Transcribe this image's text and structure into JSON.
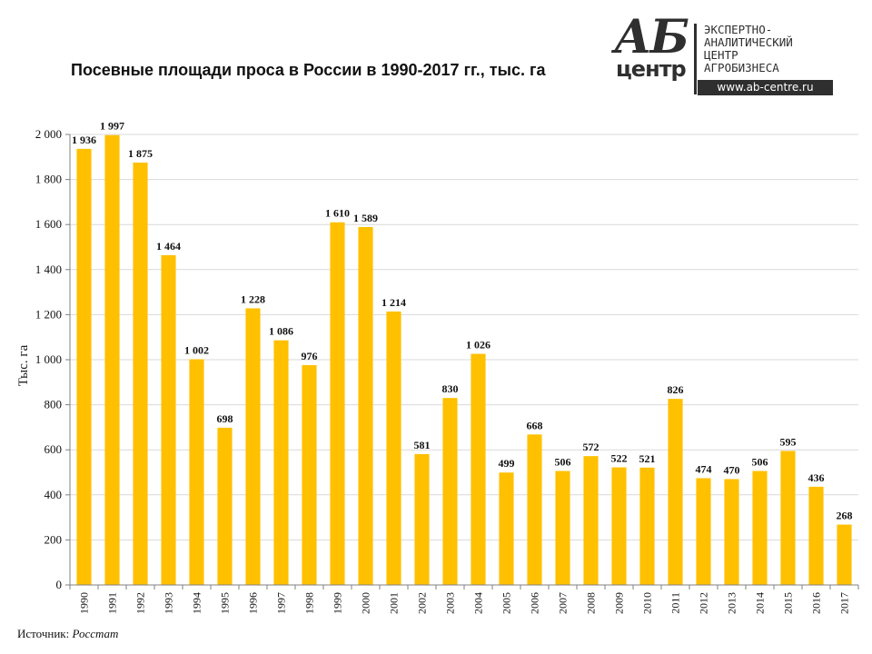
{
  "header": {
    "title": "Посевные площади проса в России в 1990-2017 гг., тыс. га"
  },
  "logo": {
    "ab": "АБ",
    "centr": "центр",
    "line1": "ЭКСПЕРТНО-",
    "line2": "АНАЛИТИЧЕСКИЙ",
    "line3": "ЦЕНТР",
    "line4": "АГРОБИЗНЕСА",
    "url": "www.ab-centre.ru"
  },
  "footer": {
    "source_label": "Источник:",
    "source_value": "Росстат"
  },
  "chart_data": {
    "type": "bar",
    "title": "Посевные площади проса в России в 1990-2017 гг., тыс. га",
    "xlabel": "",
    "ylabel": "Тыс. га",
    "ylim": [
      0,
      2000
    ],
    "yticks": [
      0,
      200,
      400,
      600,
      800,
      1000,
      1200,
      1400,
      1600,
      1800,
      2000
    ],
    "ytick_labels": [
      "0",
      "200",
      "400",
      "600",
      "800",
      "1 000",
      "1 200",
      "1 400",
      "1 600",
      "1 800",
      "2 000"
    ],
    "grid": true,
    "categories": [
      "1990",
      "1991",
      "1992",
      "1993",
      "1994",
      "1995",
      "1996",
      "1997",
      "1998",
      "1999",
      "2000",
      "2001",
      "2002",
      "2003",
      "2004",
      "2005",
      "2006",
      "2007",
      "2008",
      "2009",
      "2010",
      "2011",
      "2012",
      "2013",
      "2014",
      "2015",
      "2016",
      "2017"
    ],
    "values": [
      1936,
      1997,
      1875,
      1464,
      1002,
      698,
      1228,
      1086,
      976,
      1610,
      1589,
      1214,
      581,
      830,
      1026,
      499,
      668,
      506,
      572,
      522,
      521,
      826,
      474,
      470,
      506,
      595,
      436,
      268
    ],
    "value_labels": [
      "1 936",
      "1 997",
      "1 875",
      "1 464",
      "1 002",
      "698",
      "1 228",
      "1 086",
      "976",
      "1 610",
      "1 589",
      "1 214",
      "581",
      "830",
      "1 026",
      "499",
      "668",
      "506",
      "572",
      "522",
      "521",
      "826",
      "474",
      "470",
      "506",
      "595",
      "436",
      "268"
    ],
    "bar_color": "#FFC000",
    "grid_color": "#D9D9D9",
    "axis_color": "#808080"
  }
}
